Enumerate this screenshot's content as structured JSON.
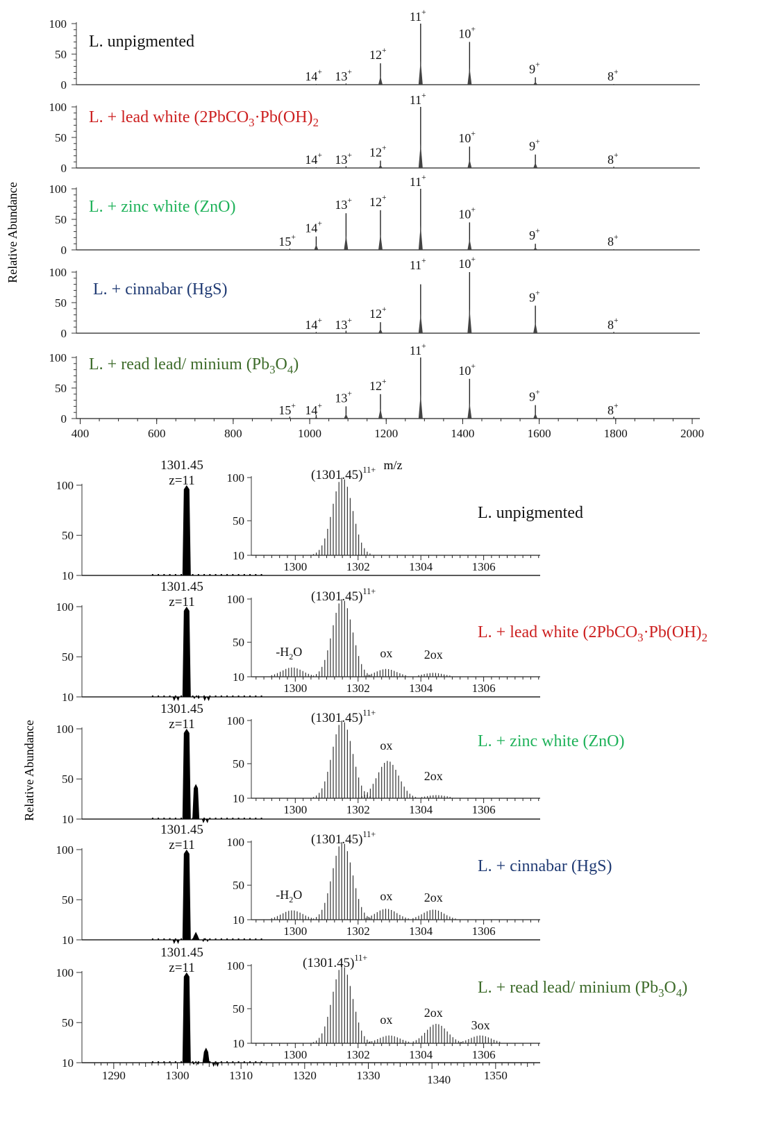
{
  "figure": {
    "y_axis_label": "Relative Abundance",
    "x_axis_label": "m/z",
    "samples": [
      {
        "label": "L. unpigmented",
        "label_sub": "",
        "label_tail": "",
        "color": "#111111"
      },
      {
        "label": "L. + lead white (2PbCO",
        "label_sub": "3",
        "label_tail": "·Pb(OH)",
        "label_sub2": "2",
        "color": "#cc1f1f"
      },
      {
        "label": "L. + zinc white (ZnO)",
        "label_sub": "",
        "label_tail": "",
        "color": "#1fb25a"
      },
      {
        "label": "L. + cinnabar (HgS)",
        "label_sub": "",
        "label_tail": "",
        "color": "#1f3a73"
      },
      {
        "label": "L. + read lead/ minium (Pb",
        "label_sub": "3",
        "label_tail": "O",
        "label_sub2": "4",
        "label_end": ")",
        "color": "#3d6b2a"
      }
    ]
  },
  "chart_data": [
    {
      "type": "line",
      "title": "",
      "xlabel": "m/z",
      "ylabel": "Relative Abundance",
      "xlim": [
        390,
        2020
      ],
      "ylim": [
        0,
        100
      ],
      "xticks": [
        400,
        600,
        800,
        1000,
        1200,
        1400,
        1600,
        1800,
        2000
      ],
      "yticks": [
        0,
        50,
        100
      ],
      "charge_peaks": {
        "8": 1795,
        "9": 1590,
        "10": 1418,
        "11": 1290,
        "12": 1185,
        "13": 1095,
        "14": 1017,
        "15": 948
      },
      "panels": [
        {
          "name": "L. unpigmented",
          "peaks": {
            "15": 0,
            "14": 1,
            "13": 2,
            "12": 35,
            "11": 100,
            "10": 70,
            "9": 12,
            "8": 1
          }
        },
        {
          "name": "L. + lead white",
          "peaks": {
            "15": 0,
            "14": 1,
            "13": 3,
            "12": 12,
            "11": 100,
            "10": 35,
            "9": 22,
            "8": 2
          }
        },
        {
          "name": "L. + zinc white (ZnO)",
          "peaks": {
            "15": 2,
            "14": 22,
            "13": 60,
            "12": 65,
            "11": 100,
            "10": 45,
            "9": 10,
            "8": 1
          }
        },
        {
          "name": "L. + cinnabar (HgS)",
          "peaks": {
            "15": 0,
            "14": 2,
            "13": 4,
            "12": 18,
            "11": 80,
            "10": 100,
            "9": 45,
            "8": 2
          }
        },
        {
          "name": "L. + read lead/ minium",
          "peaks": {
            "15": 3,
            "14": 6,
            "13": 20,
            "12": 40,
            "11": 100,
            "10": 65,
            "9": 22,
            "8": 3
          }
        }
      ],
      "labels": [
        "14+",
        "13+",
        "12+",
        "11+",
        "10+",
        "9+",
        "8+",
        "15+"
      ]
    },
    {
      "type": "line",
      "title": "",
      "xlabel": "",
      "ylabel": "Relative Abundance",
      "xlim": [
        1285,
        1357
      ],
      "ylim": [
        10,
        100
      ],
      "xticks": [
        1290,
        1300,
        1310,
        1320,
        1330,
        1340,
        1350
      ],
      "yticks": [
        10,
        50,
        100
      ],
      "peak_label": "1301.45",
      "charge_label": "z=11",
      "panels": [
        {
          "name": "L. unpigmented",
          "peaks": [
            [
              1301.45,
              100
            ]
          ]
        },
        {
          "name": "L. + lead white",
          "peaks": [
            [
              1301.45,
              100
            ],
            [
              1299.8,
              8
            ],
            [
              1303.0,
              12
            ],
            [
              1304.6,
              6
            ]
          ]
        },
        {
          "name": "L. + zinc white (ZnO)",
          "peaks": [
            [
              1301.45,
              100
            ],
            [
              1302.9,
              45
            ],
            [
              1304.4,
              4
            ]
          ]
        },
        {
          "name": "L. + cinnabar (HgS)",
          "peaks": [
            [
              1301.45,
              100
            ],
            [
              1299.8,
              10
            ],
            [
              1302.9,
              18
            ],
            [
              1304.4,
              12
            ]
          ]
        },
        {
          "name": "L. + read lead/ minium",
          "peaks": [
            [
              1301.45,
              100
            ],
            [
              1302.9,
              12
            ],
            [
              1304.5,
              25
            ],
            [
              1306.0,
              10
            ]
          ]
        }
      ]
    },
    {
      "type": "line",
      "title": "",
      "inset": true,
      "xlim": [
        1298.6,
        1307.8
      ],
      "ylim": [
        10,
        100
      ],
      "xticks": [
        1300,
        1302,
        1304,
        1306
      ],
      "yticks": [
        10,
        50,
        100
      ],
      "ion_label": "(1301.45)",
      "ion_charge": "11+",
      "panels": [
        {
          "name": "L. unpigmented",
          "envelopes": [
            {
              "center": 1301.5,
              "height": 100
            }
          ],
          "annotations": []
        },
        {
          "name": "L. + lead white",
          "envelopes": [
            {
              "center": 1301.5,
              "height": 100
            },
            {
              "center": 1299.9,
              "height": 12
            },
            {
              "center": 1302.9,
              "height": 10
            },
            {
              "center": 1304.4,
              "height": 5
            }
          ],
          "annotations": [
            "-H2O",
            "ox",
            "2ox"
          ]
        },
        {
          "name": "L. + zinc white (ZnO)",
          "envelopes": [
            {
              "center": 1301.5,
              "height": 100
            },
            {
              "center": 1302.95,
              "height": 48
            },
            {
              "center": 1304.5,
              "height": 4
            }
          ],
          "annotations": [
            "ox",
            "2ox"
          ]
        },
        {
          "name": "L. + cinnabar (HgS)",
          "envelopes": [
            {
              "center": 1301.5,
              "height": 100
            },
            {
              "center": 1299.9,
              "height": 12
            },
            {
              "center": 1302.9,
              "height": 14
            },
            {
              "center": 1304.4,
              "height": 13
            }
          ],
          "annotations": [
            "-H2O",
            "ox",
            "2ox"
          ]
        },
        {
          "name": "L. + read lead/ minium",
          "envelopes": [
            {
              "center": 1301.5,
              "height": 100
            },
            {
              "center": 1303.0,
              "height": 10
            },
            {
              "center": 1304.5,
              "height": 25
            },
            {
              "center": 1305.9,
              "height": 10
            }
          ],
          "annotations": [
            "ox",
            "2ox",
            "3ox"
          ]
        }
      ]
    }
  ]
}
